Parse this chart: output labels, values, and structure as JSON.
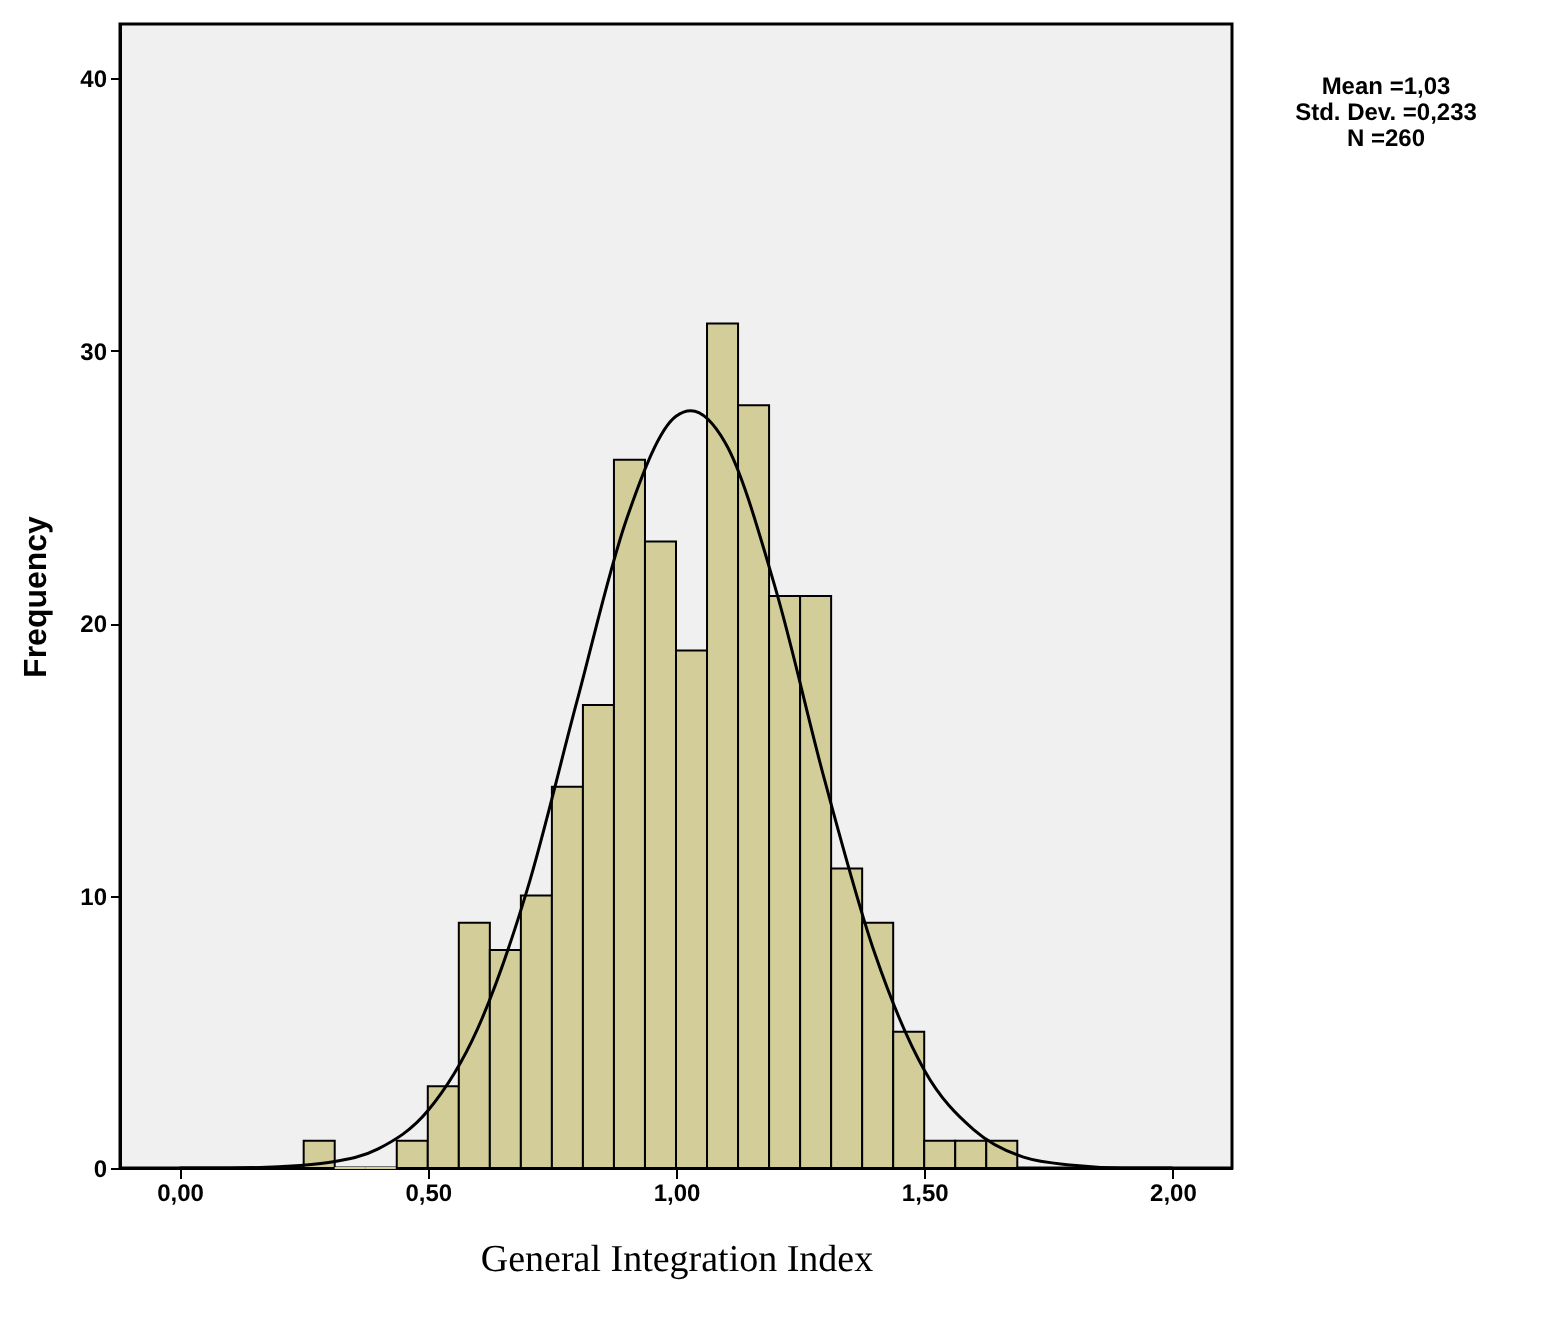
{
  "chart_data": {
    "type": "histogram",
    "xlabel": "General Integration Index",
    "ylabel": "Frequency",
    "bins": [
      0.25,
      0.3125,
      0.375,
      0.4375,
      0.5,
      0.5625,
      0.625,
      0.6875,
      0.75,
      0.8125,
      0.875,
      0.9375,
      1.0,
      1.0625,
      1.125,
      1.1875,
      1.25,
      1.3125,
      1.375,
      1.4375,
      1.5,
      1.5625,
      1.625,
      1.6875
    ],
    "values": [
      1,
      0,
      0,
      1,
      3,
      9,
      8,
      10,
      14,
      17,
      26,
      23,
      19,
      31,
      28,
      21,
      21,
      11,
      9,
      5,
      1,
      1,
      1
    ],
    "color": "#d3ce99",
    "series": [
      {
        "type": "line",
        "color": "#000000",
        "x": [
          0.0,
          0.1,
          0.2,
          0.3,
          0.4,
          0.5,
          0.6,
          0.7,
          0.8,
          0.9,
          1.0,
          1.03,
          1.1,
          1.2,
          1.3,
          1.4,
          1.5,
          1.6,
          1.7,
          1.8,
          1.9,
          2.0
        ],
        "values": [
          0.0,
          0.0,
          0.05,
          0.2,
          0.7,
          2.1,
          5.1,
          10.2,
          17.1,
          23.8,
          27.6,
          27.8,
          26.6,
          21.3,
          14.2,
          7.9,
          3.6,
          1.4,
          0.4,
          0.1,
          0.0,
          0.0
        ]
      }
    ],
    "xlim": [
      -0.12,
      2.12
    ],
    "ylim": [
      0,
      42
    ],
    "xticks": [
      {
        "value": 0,
        "label": "0,00"
      },
      {
        "value": 0.5,
        "label": "0,50"
      },
      {
        "value": 1,
        "label": "1,00"
      },
      {
        "value": 1.5,
        "label": "1,50"
      },
      {
        "value": 2,
        "label": "2,00"
      }
    ],
    "yticks": [
      0,
      10,
      20,
      30,
      40
    ],
    "grid": false,
    "annotations": [
      "Mean =1,03",
      "Std. Dev. =0,233",
      "N =260"
    ]
  }
}
